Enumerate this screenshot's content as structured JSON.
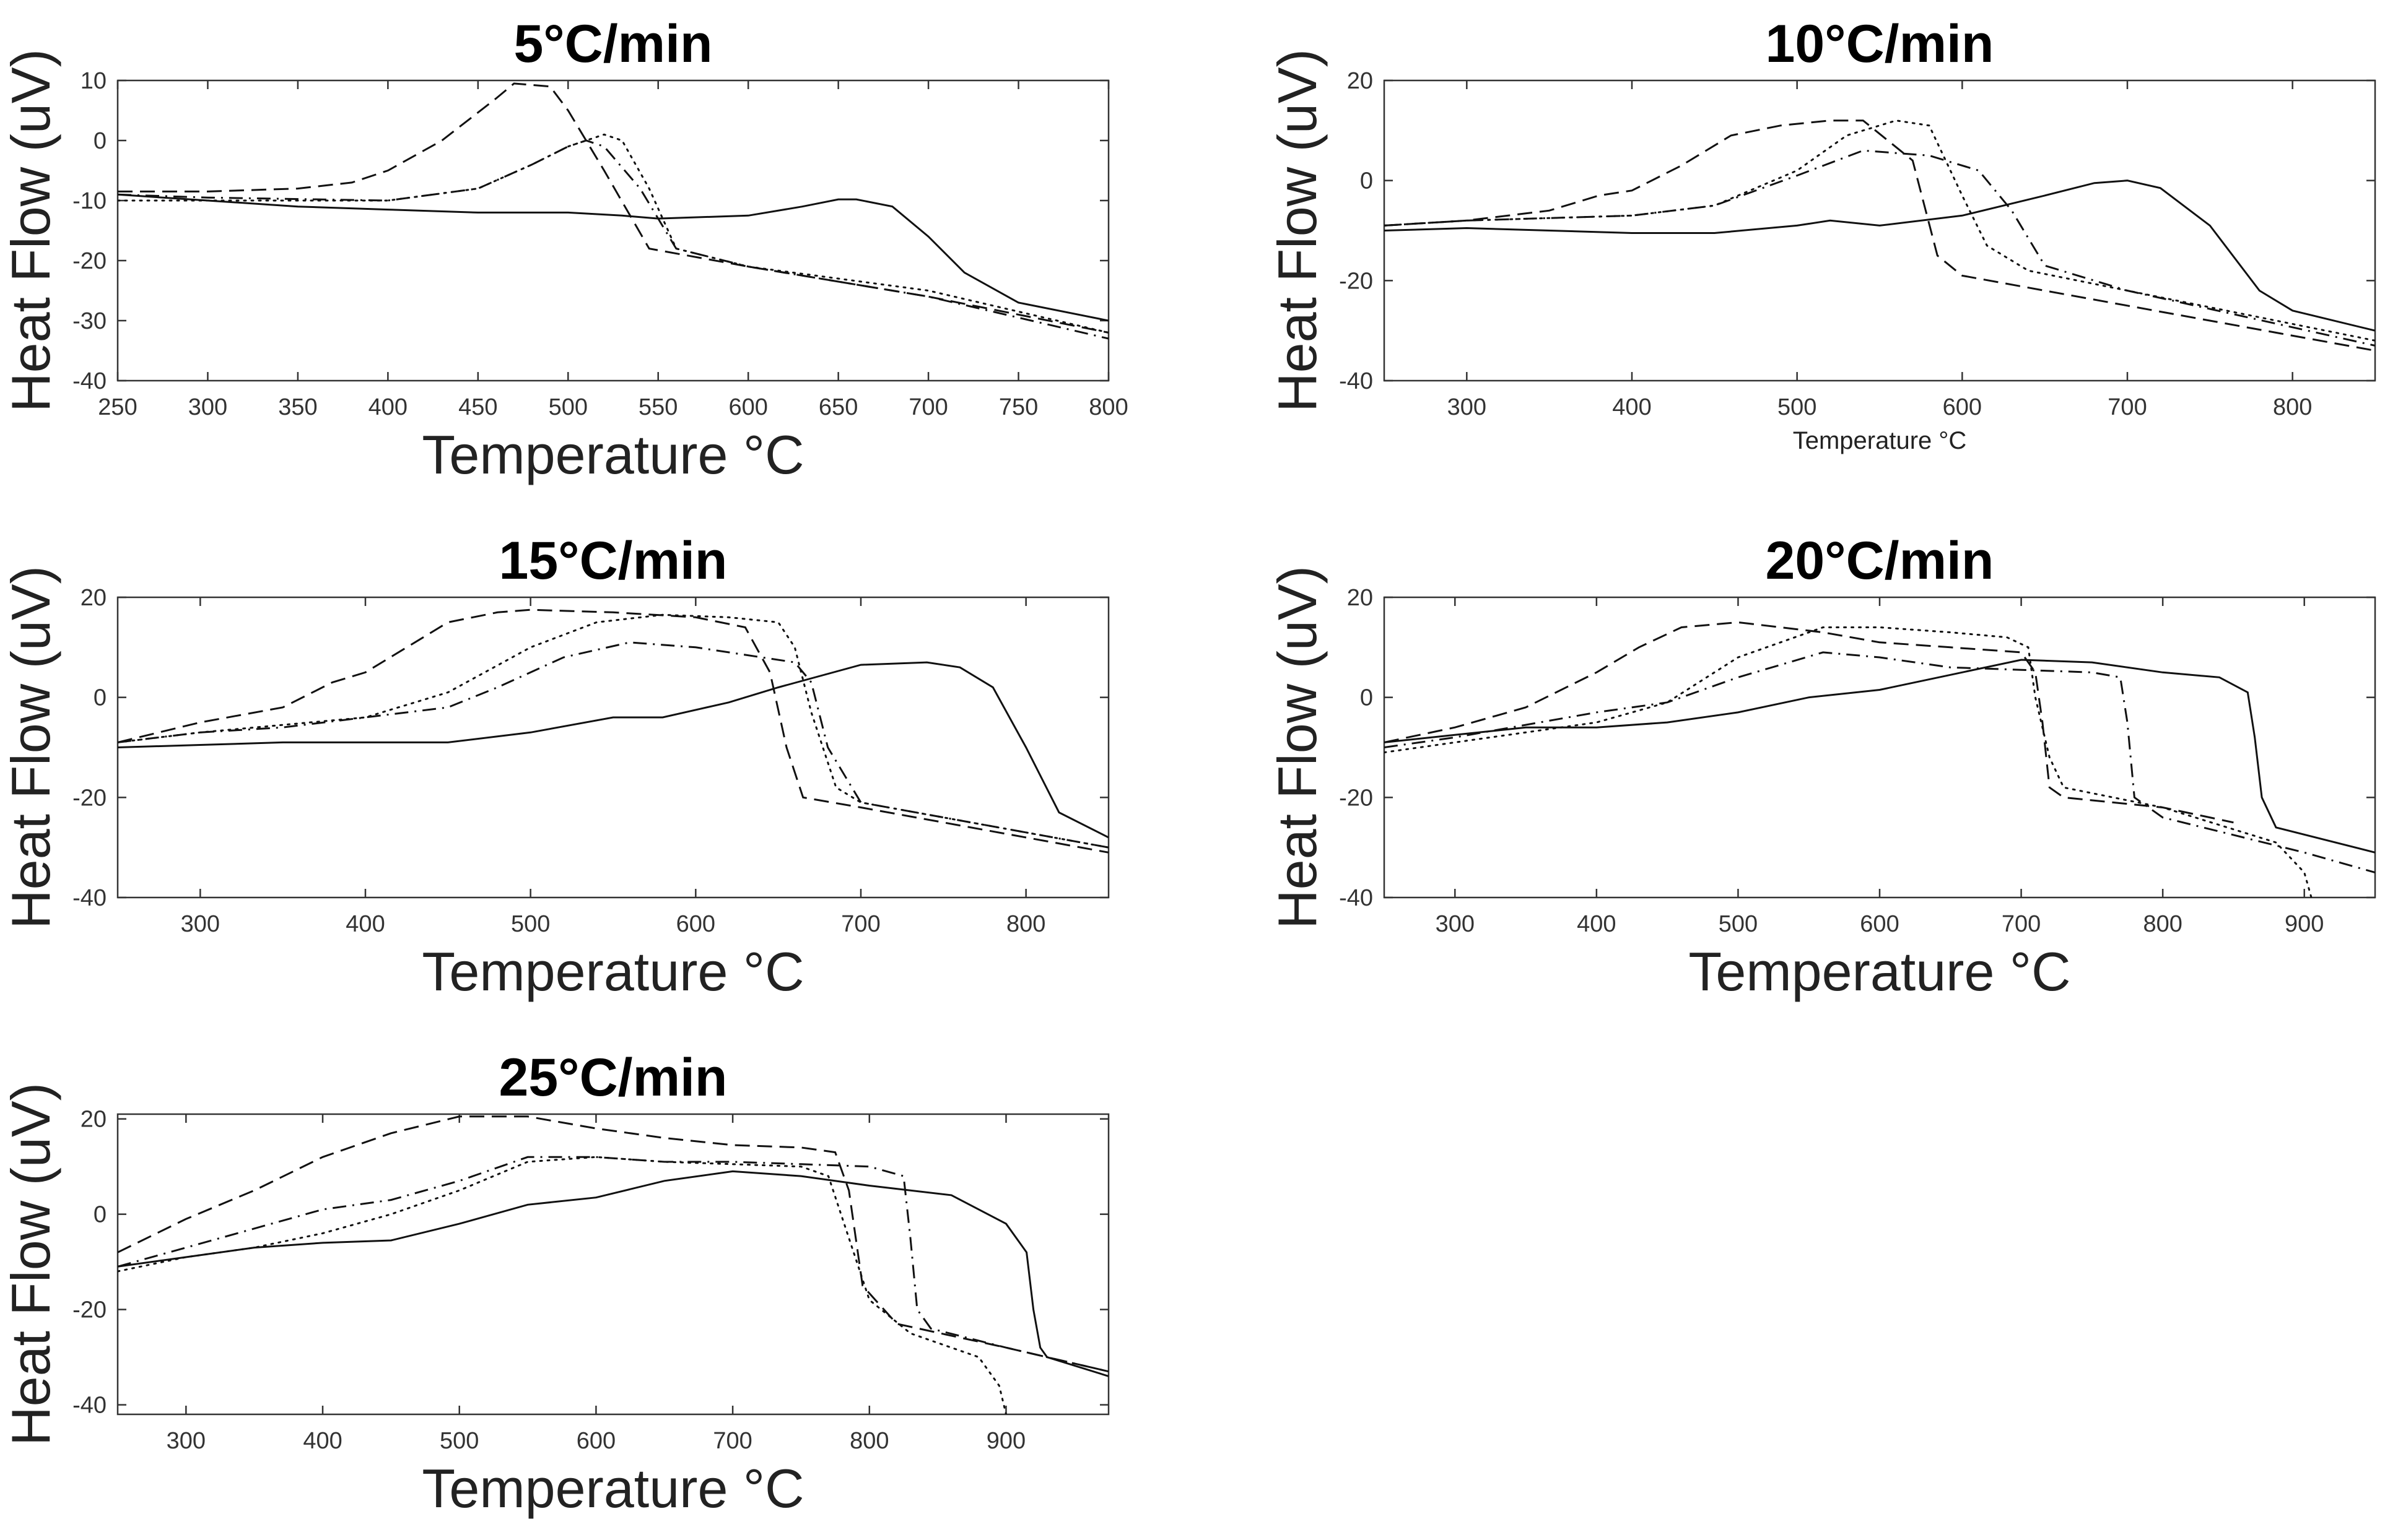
{
  "chart_data": [
    {
      "type": "line",
      "title": "5°C/min",
      "xlabel": "Temperature °C",
      "ylabel": "Heat Flow (uV)",
      "xlabel_small": false,
      "xlim": [
        250,
        800
      ],
      "ylim": [
        -40,
        10
      ],
      "xticks": [
        250,
        300,
        350,
        400,
        450,
        500,
        550,
        600,
        650,
        700,
        750,
        800
      ],
      "yticks": [
        -40,
        -30,
        -20,
        -10,
        0,
        10
      ],
      "series": [
        {
          "name": "solid",
          "style": "solid",
          "x": [
            250,
            300,
            350,
            400,
            450,
            500,
            530,
            550,
            600,
            630,
            650,
            660,
            680,
            700,
            720,
            750,
            800
          ],
          "y": [
            -9,
            -10,
            -11,
            -11.5,
            -12,
            -12,
            -12.5,
            -13,
            -12.5,
            -11,
            -9.8,
            -9.8,
            -11,
            -16,
            -22,
            -27,
            -30
          ]
        },
        {
          "name": "dashed",
          "style": "dashed",
          "x": [
            250,
            300,
            350,
            380,
            400,
            430,
            460,
            470,
            490,
            500,
            520,
            545,
            600,
            700,
            800
          ],
          "y": [
            -8.5,
            -8.5,
            -8,
            -7,
            -5,
            0,
            7,
            9.5,
            9,
            5,
            -5,
            -18,
            -21,
            -26,
            -32
          ]
        },
        {
          "name": "dotted",
          "style": "dotted",
          "x": [
            250,
            300,
            400,
            450,
            480,
            500,
            520,
            530,
            545,
            560,
            600,
            700,
            800
          ],
          "y": [
            -10,
            -10,
            -10,
            -8,
            -4,
            -1,
            1,
            0,
            -8,
            -18,
            -21,
            -25,
            -32
          ]
        },
        {
          "name": "dashdot",
          "style": "dashdot",
          "x": [
            250,
            300,
            400,
            450,
            480,
            500,
            510,
            520,
            540,
            560,
            600,
            700,
            800
          ],
          "y": [
            -9,
            -9.5,
            -10,
            -8,
            -4,
            -1,
            0,
            -1,
            -8,
            -18,
            -21,
            -26,
            -33
          ]
        }
      ]
    },
    {
      "type": "line",
      "title": "10°C/min",
      "xlabel": "Temperature °C",
      "ylabel": "Heat Flow (uV)",
      "xlabel_small": true,
      "xlim": [
        250,
        850
      ],
      "ylim": [
        -40,
        20
      ],
      "xticks": [
        300,
        400,
        500,
        600,
        700,
        800
      ],
      "yticks": [
        -40,
        -20,
        0,
        20
      ],
      "series": [
        {
          "name": "solid",
          "style": "solid",
          "x": [
            250,
            300,
            400,
            450,
            500,
            520,
            550,
            600,
            650,
            680,
            700,
            720,
            750,
            780,
            800,
            850
          ],
          "y": [
            -10,
            -9.5,
            -10.5,
            -10.5,
            -9,
            -8,
            -9,
            -7,
            -3,
            -0.5,
            0,
            -1.5,
            -9,
            -22,
            -26,
            -30
          ]
        },
        {
          "name": "dashed",
          "style": "dashed",
          "x": [
            250,
            300,
            350,
            380,
            400,
            430,
            460,
            490,
            520,
            540,
            570,
            585,
            600,
            700,
            850
          ],
          "y": [
            -9,
            -8,
            -6,
            -3,
            -2,
            3,
            9,
            11,
            12,
            12,
            4,
            -15,
            -19,
            -25,
            -34
          ]
        },
        {
          "name": "dotted",
          "style": "dotted",
          "x": [
            250,
            300,
            400,
            450,
            500,
            530,
            560,
            580,
            600,
            615,
            640,
            700,
            850
          ],
          "y": [
            -9,
            -8,
            -7,
            -5,
            2,
            9,
            12,
            11,
            -3,
            -13,
            -18,
            -22,
            -32
          ]
        },
        {
          "name": "dashdot",
          "style": "dashdot",
          "x": [
            250,
            300,
            400,
            450,
            500,
            540,
            580,
            610,
            630,
            650,
            700,
            850
          ],
          "y": [
            -9,
            -8,
            -7,
            -5,
            1,
            6,
            5,
            2,
            -6,
            -17,
            -22,
            -33
          ]
        }
      ]
    },
    {
      "type": "line",
      "title": "15°C/min",
      "xlabel": "Temperature °C",
      "ylabel": "Heat Flow (uV)",
      "xlabel_small": false,
      "xlim": [
        250,
        850
      ],
      "ylim": [
        -40,
        20
      ],
      "xticks": [
        300,
        400,
        500,
        600,
        700,
        800
      ],
      "yticks": [
        -40,
        -20,
        0,
        20
      ],
      "series": [
        {
          "name": "solid",
          "style": "solid",
          "x": [
            250,
            300,
            350,
            400,
            450,
            500,
            550,
            580,
            620,
            650,
            700,
            740,
            760,
            780,
            800,
            820,
            850
          ],
          "y": [
            -10,
            -9.5,
            -9,
            -9,
            -9,
            -7,
            -4,
            -4,
            -1,
            2,
            6.5,
            7,
            6,
            2,
            -10,
            -23,
            -28
          ]
        },
        {
          "name": "dashed",
          "style": "dashed",
          "x": [
            250,
            300,
            350,
            380,
            400,
            430,
            450,
            480,
            500,
            550,
            600,
            630,
            645,
            655,
            665,
            700,
            800,
            850
          ],
          "y": [
            -9,
            -5,
            -2,
            3,
            5,
            11,
            15,
            17,
            17.5,
            17,
            16,
            14,
            5,
            -10,
            -20,
            -22,
            -28,
            -31
          ]
        },
        {
          "name": "dotted",
          "style": "dotted",
          "x": [
            250,
            300,
            400,
            450,
            500,
            540,
            580,
            620,
            650,
            660,
            670,
            685,
            700,
            800,
            850
          ],
          "y": [
            -9,
            -7,
            -4,
            1,
            10,
            15,
            16.5,
            16,
            15,
            10,
            -3,
            -18,
            -21,
            -27,
            -30
          ]
        },
        {
          "name": "dashdot",
          "style": "dashdot",
          "x": [
            250,
            300,
            350,
            400,
            450,
            480,
            520,
            560,
            600,
            640,
            660,
            670,
            680,
            700,
            800,
            850
          ],
          "y": [
            -9,
            -7,
            -6,
            -4,
            -2,
            2,
            8,
            11,
            10,
            8,
            7,
            3,
            -10,
            -21,
            -27,
            -30
          ]
        }
      ]
    },
    {
      "type": "line",
      "title": "20°C/min",
      "xlabel": "Temperature °C",
      "ylabel": "Heat Flow (uV)",
      "xlabel_small": false,
      "xlim": [
        250,
        950
      ],
      "ylim": [
        -40,
        20
      ],
      "xticks": [
        300,
        400,
        500,
        600,
        700,
        800,
        900
      ],
      "yticks": [
        -40,
        -20,
        0,
        20
      ],
      "series": [
        {
          "name": "solid",
          "style": "solid",
          "x": [
            250,
            300,
            350,
            400,
            450,
            500,
            550,
            600,
            650,
            700,
            750,
            800,
            840,
            860,
            865,
            870,
            880,
            950
          ],
          "y": [
            -9,
            -7.5,
            -6,
            -6,
            -5,
            -3,
            0,
            1.5,
            4.5,
            7.5,
            7,
            5,
            4,
            1,
            -8,
            -20,
            -26,
            -31
          ]
        },
        {
          "name": "dashed",
          "style": "dashed",
          "x": [
            250,
            300,
            350,
            400,
            430,
            460,
            500,
            560,
            600,
            650,
            700,
            710,
            715,
            720,
            730,
            800,
            850
          ],
          "y": [
            -9,
            -6,
            -2,
            5,
            10,
            14,
            15,
            13,
            11,
            10,
            9,
            5,
            -5,
            -18,
            -20,
            -22,
            -25
          ]
        },
        {
          "name": "dotted",
          "style": "dotted",
          "x": [
            250,
            300,
            400,
            450,
            500,
            540,
            560,
            600,
            650,
            690,
            705,
            710,
            720,
            730,
            800,
            880,
            900,
            905
          ],
          "y": [
            -11,
            -9,
            -5,
            -1,
            8,
            12,
            14,
            14,
            13,
            12,
            10,
            0,
            -12,
            -18,
            -22,
            -29,
            -35,
            -40
          ]
        },
        {
          "name": "dashdot",
          "style": "dashdot",
          "x": [
            250,
            300,
            400,
            450,
            500,
            560,
            600,
            650,
            700,
            750,
            770,
            775,
            780,
            800,
            900,
            950
          ],
          "y": [
            -10,
            -8,
            -3,
            -1,
            4,
            9,
            8,
            6,
            5.5,
            5,
            4,
            -5,
            -20,
            -24,
            -31,
            -35
          ]
        }
      ]
    },
    {
      "type": "line",
      "title": "25°C/min",
      "xlabel": "Temperature °C",
      "ylabel": "Heat Flow (uV)",
      "xlabel_small": false,
      "xlim": [
        250,
        975
      ],
      "ylim": [
        -42,
        21
      ],
      "xticks": [
        300,
        400,
        500,
        600,
        700,
        800,
        900
      ],
      "yticks": [
        -40,
        -20,
        0,
        20
      ],
      "series": [
        {
          "name": "solid",
          "style": "solid",
          "x": [
            250,
            300,
            350,
            400,
            450,
            500,
            550,
            600,
            650,
            700,
            750,
            800,
            860,
            900,
            915,
            920,
            925,
            930,
            975
          ],
          "y": [
            -11,
            -9,
            -7,
            -6,
            -5.5,
            -2,
            2,
            3.5,
            7,
            9,
            8,
            6,
            4,
            -2,
            -8,
            -20,
            -28,
            -30,
            -34
          ]
        },
        {
          "name": "dashed",
          "style": "dashed",
          "x": [
            250,
            300,
            350,
            400,
            450,
            500,
            550,
            600,
            650,
            700,
            750,
            775,
            785,
            795,
            820,
            900,
            975
          ],
          "y": [
            -8,
            -1,
            5,
            12,
            17,
            20.5,
            20.5,
            18,
            16,
            14.5,
            14,
            13,
            5,
            -15,
            -23,
            -28,
            -33
          ]
        },
        {
          "name": "dotted",
          "style": "dotted",
          "x": [
            250,
            300,
            350,
            400,
            450,
            500,
            550,
            600,
            650,
            700,
            750,
            770,
            785,
            800,
            830,
            880,
            895,
            900
          ],
          "y": [
            -12,
            -9,
            -7,
            -4,
            0,
            5,
            11,
            12,
            11,
            10.5,
            10,
            8,
            -5,
            -18,
            -25,
            -30,
            -36,
            -42
          ]
        },
        {
          "name": "dashdot",
          "style": "dashdot",
          "x": [
            250,
            300,
            350,
            400,
            450,
            500,
            550,
            600,
            650,
            700,
            750,
            800,
            825,
            830,
            835,
            845,
            900,
            975
          ],
          "y": [
            -11,
            -7,
            -3,
            1,
            3,
            7,
            12,
            12,
            11,
            11,
            10.5,
            10,
            8,
            -5,
            -20,
            -24,
            -28,
            -33
          ]
        }
      ]
    }
  ]
}
